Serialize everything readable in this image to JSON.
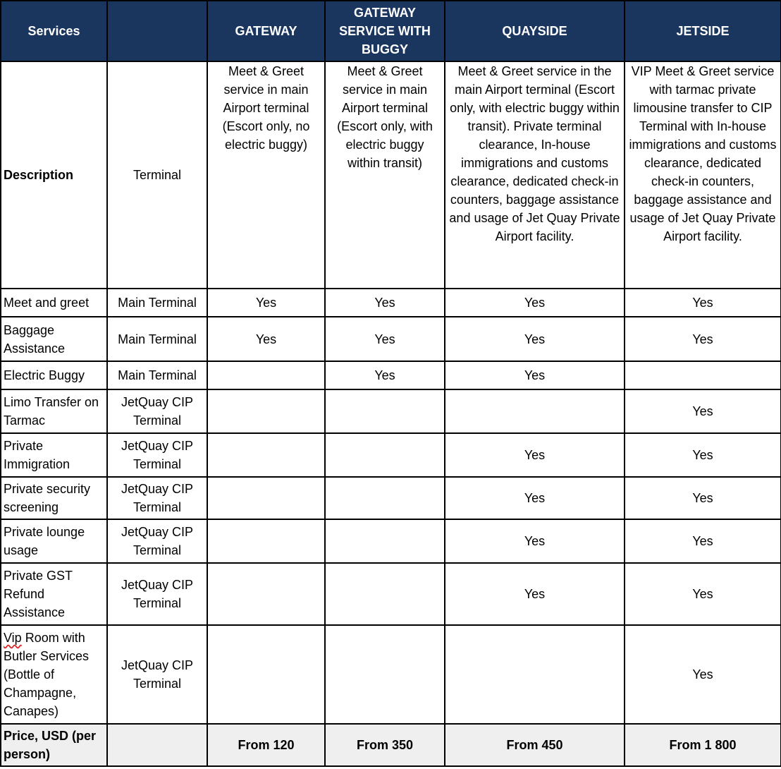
{
  "header": [
    "Services",
    "",
    "GATEWAY",
    "GATEWAY SERVICE WITH BUGGY",
    "QUAYSIDE",
    "JETSIDE"
  ],
  "colors": {
    "header_bg": "#1a365f",
    "header_text": "#ffffff",
    "price_bg": "#efefef",
    "spellcheck_underline": "#dd2222"
  },
  "rows": [
    {
      "label": "Description",
      "location": "Terminal",
      "values": [
        "Meet & Greet service in main Airport terminal (Escort only, no electric buggy)",
        "Meet & Greet service in main Airport terminal (Escort only, with electric buggy within transit)",
        "Meet & Greet service in the main Airport terminal (Escort only, with electric buggy within transit). Private terminal clearance, In-house immigrations and customs clearance, dedicated check-in counters, baggage assistance and usage of Jet Quay Private Airport facility.",
        "VIP Meet & Greet service with tarmac private limousine transfer to CIP Terminal with In-house immigrations and customs clearance, dedicated check-in counters, baggage assistance and usage of Jet Quay Private Airport facility."
      ]
    },
    {
      "label": "Meet and greet",
      "location": "Main Terminal",
      "values": [
        "Yes",
        "Yes",
        "Yes",
        "Yes"
      ]
    },
    {
      "label": "Baggage Assistance",
      "location": "Main Terminal",
      "values": [
        "Yes",
        "Yes",
        "Yes",
        "Yes"
      ]
    },
    {
      "label": "Electric Buggy",
      "location": "Main Terminal",
      "values": [
        "",
        "Yes",
        "Yes",
        ""
      ]
    },
    {
      "label": "Limo Transfer on Tarmac",
      "location": "JetQuay CIP Terminal",
      "values": [
        "",
        "",
        "",
        "Yes"
      ]
    },
    {
      "label": "Private Immigration",
      "location": "JetQuay CIP Terminal",
      "values": [
        "",
        "",
        "Yes",
        "Yes"
      ]
    },
    {
      "label": "Private security screening",
      "location": "JetQuay CIP Terminal",
      "values": [
        "",
        "",
        "Yes",
        "Yes"
      ]
    },
    {
      "label": "Private lounge usage",
      "location": "JetQuay CIP Terminal",
      "values": [
        "",
        "",
        "Yes",
        "Yes"
      ]
    },
    {
      "label": "Private GST Refund Assistance",
      "location": "JetQuay CIP Terminal",
      "values": [
        "",
        "",
        "Yes",
        "Yes"
      ]
    },
    {
      "label_first": "Vip",
      "label": " Room with Butler Services (Bottle of Champagne, Canapes)",
      "location": "JetQuay CIP Terminal",
      "values": [
        "",
        "",
        "",
        "Yes"
      ]
    },
    {
      "label": "Price, USD (per person)",
      "location": "",
      "values": [
        "From 120",
        "From 350",
        "From 450",
        "From 1 800"
      ]
    }
  ]
}
